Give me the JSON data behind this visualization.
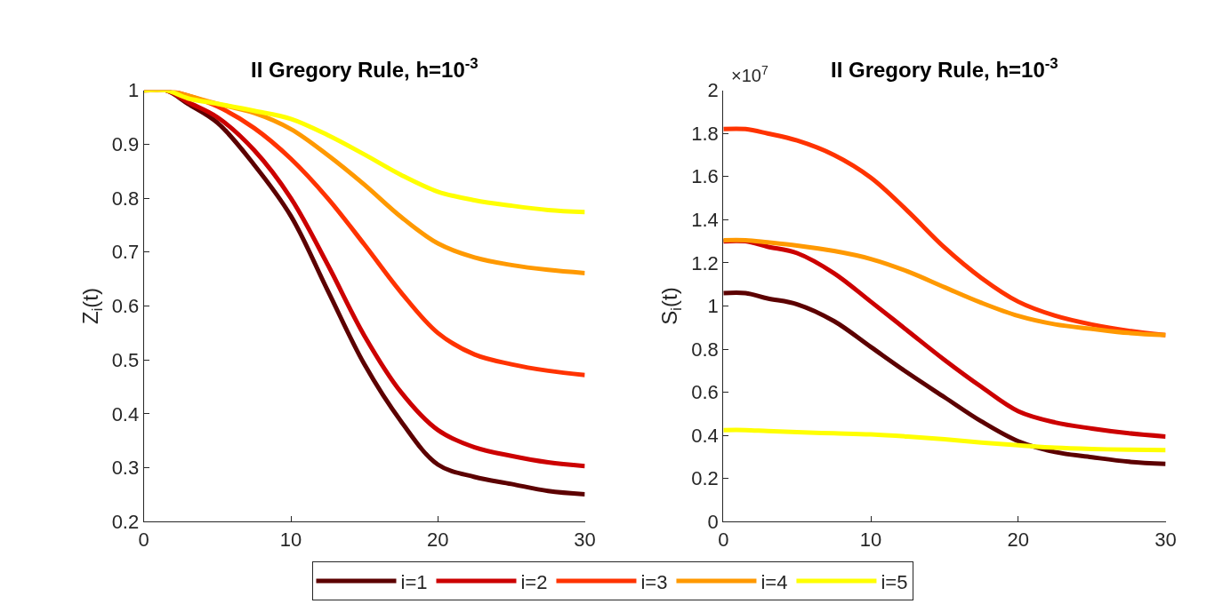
{
  "chart_data": [
    {
      "type": "line",
      "title": "II Gregory Rule, h=10$^{-3}$",
      "ylabel": "Z$_{i}$(t)",
      "xlim": [
        0,
        30
      ],
      "xticks": [
        0,
        10,
        20,
        30
      ],
      "ylim": [
        0.2,
        1
      ],
      "yticks": [
        0.2,
        0.3,
        0.4,
        0.5,
        0.6,
        0.7,
        0.8,
        0.9,
        1
      ],
      "legend": "bottom",
      "line_style": "solid",
      "marker": "none",
      "x": [
        0,
        1.5,
        3,
        5,
        7.5,
        10,
        12.5,
        15,
        17.5,
        20,
        22.5,
        25,
        27.5,
        30
      ],
      "series": [
        {
          "name": "i=1",
          "color": "#5c0000",
          "values": [
            1,
            1,
            0.975,
            0.94,
            0.862,
            0.767,
            0.629,
            0.492,
            0.386,
            0.306,
            0.283,
            0.27,
            0.257,
            0.251
          ]
        },
        {
          "name": "i=2",
          "color": "#cc0000",
          "values": [
            1,
            1,
            0.978,
            0.95,
            0.889,
            0.8,
            0.677,
            0.545,
            0.44,
            0.37,
            0.338,
            0.322,
            0.31,
            0.303
          ]
        },
        {
          "name": "i=3",
          "color": "#ff3300",
          "values": [
            1,
            1,
            0.99,
            0.97,
            0.93,
            0.873,
            0.8,
            0.714,
            0.625,
            0.55,
            0.51,
            0.492,
            0.48,
            0.472
          ]
        },
        {
          "name": "i=4",
          "color": "#ff9900",
          "values": [
            1,
            1,
            0.99,
            0.975,
            0.958,
            0.928,
            0.88,
            0.825,
            0.765,
            0.716,
            0.69,
            0.676,
            0.667,
            0.661
          ]
        },
        {
          "name": "i=5",
          "color": "#ffff00",
          "values": [
            1,
            1,
            0.985,
            0.975,
            0.962,
            0.947,
            0.917,
            0.881,
            0.843,
            0.812,
            0.796,
            0.786,
            0.778,
            0.774
          ]
        }
      ]
    },
    {
      "type": "line",
      "title": "II Gregory Rule, h=10$^{-3}$",
      "ylabel": "S$_{i}$(t)",
      "annotations": [
        "×10$^{7}$"
      ],
      "xlim": [
        0,
        30
      ],
      "xticks": [
        0,
        10,
        20,
        30
      ],
      "ylim": [
        0,
        2
      ],
      "yticks": [
        0,
        0.2,
        0.4,
        0.6,
        0.8,
        1,
        1.2,
        1.4,
        1.6,
        1.8,
        2
      ],
      "legend": "bottom",
      "line_style": "solid",
      "marker": "none",
      "x": [
        0,
        1.5,
        3,
        5,
        7.5,
        10,
        12.5,
        15,
        17.5,
        20,
        22.5,
        25,
        27.5,
        30
      ],
      "series": [
        {
          "name": "i=1",
          "color": "#5c0000",
          "values": [
            1.06,
            1.06,
            1.035,
            1.008,
            0.93,
            0.81,
            0.69,
            0.577,
            0.465,
            0.373,
            0.323,
            0.299,
            0.278,
            0.268
          ]
        },
        {
          "name": "i=2",
          "color": "#cc0000",
          "values": [
            1.3,
            1.3,
            1.275,
            1.245,
            1.152,
            1.02,
            0.885,
            0.75,
            0.625,
            0.512,
            0.46,
            0.432,
            0.41,
            0.395
          ]
        },
        {
          "name": "i=3",
          "color": "#ff3300",
          "values": [
            1.82,
            1.82,
            1.8,
            1.767,
            1.7,
            1.595,
            1.44,
            1.271,
            1.13,
            1.02,
            0.955,
            0.914,
            0.885,
            0.865
          ]
        },
        {
          "name": "i=4",
          "color": "#ff9900",
          "values": [
            1.305,
            1.305,
            1.295,
            1.28,
            1.255,
            1.218,
            1.16,
            1.087,
            1.015,
            0.954,
            0.915,
            0.894,
            0.875,
            0.865
          ]
        },
        {
          "name": "i=5",
          "color": "#ffff00",
          "values": [
            0.425,
            0.425,
            0.42,
            0.415,
            0.41,
            0.405,
            0.395,
            0.382,
            0.367,
            0.355,
            0.343,
            0.337,
            0.334,
            0.332
          ]
        }
      ]
    }
  ]
}
